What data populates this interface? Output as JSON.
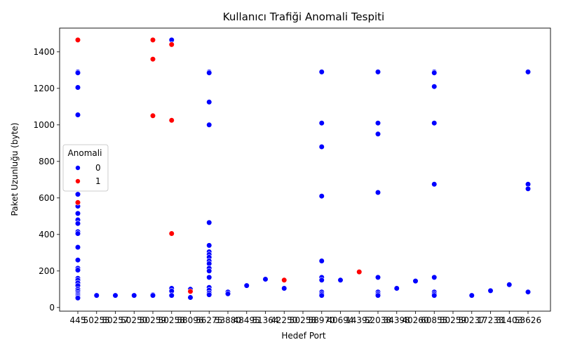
{
  "chart_data": {
    "type": "scatter",
    "title": "Kullanıcı Trafiği Anomali Tespiti",
    "xlabel": "Hedef Port",
    "ylabel": "Paket Uzunluğu (byte)",
    "ylim": [
      -20,
      1530
    ],
    "yticks": [
      0,
      200,
      400,
      600,
      800,
      1000,
      1200,
      1400
    ],
    "categories": [
      "445",
      "50255",
      "50257",
      "50250",
      "50259",
      "50258",
      "58096",
      "56275",
      "53880",
      "48495",
      "51364",
      "42250",
      "50258",
      "58970",
      "40694",
      "14392",
      "52038",
      "34398",
      "40260",
      "60855",
      "50259",
      "50237",
      "17233",
      "31403",
      "53626"
    ],
    "legend": {
      "title": "Anomali",
      "position": "center-left",
      "entries": [
        "0",
        "1"
      ]
    },
    "colors": {
      "0": "#0000ff",
      "1": "#ff0000"
    },
    "series": [
      {
        "name": "0",
        "points": [
          [
            "445",
            1290
          ],
          [
            "445",
            1285
          ],
          [
            "445",
            1205
          ],
          [
            "445",
            1055
          ],
          [
            "445",
            620
          ],
          [
            "445",
            555
          ],
          [
            "445",
            515
          ],
          [
            "445",
            480
          ],
          [
            "445",
            460
          ],
          [
            "445",
            415
          ],
          [
            "445",
            405
          ],
          [
            "445",
            330
          ],
          [
            "445",
            260
          ],
          [
            "445",
            215
          ],
          [
            "445",
            205
          ],
          [
            "445",
            160
          ],
          [
            "445",
            150
          ],
          [
            "445",
            135
          ],
          [
            "445",
            120
          ],
          [
            "445",
            100
          ],
          [
            "445",
            90
          ],
          [
            "445",
            80
          ],
          [
            "445",
            72
          ],
          [
            "445",
            65
          ],
          [
            "445",
            58
          ],
          [
            "445",
            52
          ],
          [
            "50255",
            66
          ],
          [
            "50257",
            66
          ],
          [
            "50250",
            66
          ],
          [
            "50259",
            66
          ],
          [
            "50258",
            66
          ],
          [
            "58096",
            100
          ],
          [
            "58096",
            55
          ],
          [
            "56275",
            1290
          ],
          [
            "56275",
            1285
          ],
          [
            "56275",
            1125
          ],
          [
            "56275",
            1000
          ],
          [
            "56275",
            465
          ],
          [
            "56275",
            340
          ],
          [
            "56275",
            305
          ],
          [
            "56275",
            290
          ],
          [
            "56275",
            275
          ],
          [
            "56275",
            255
          ],
          [
            "56275",
            240
          ],
          [
            "56275",
            215
          ],
          [
            "56275",
            200
          ],
          [
            "56275",
            165
          ],
          [
            "56275",
            110
          ],
          [
            "56275",
            95
          ],
          [
            "56275",
            80
          ],
          [
            "56275",
            70
          ],
          [
            "53880",
            85
          ],
          [
            "53880",
            75
          ],
          [
            "48495",
            120
          ],
          [
            "51364",
            155
          ],
          [
            "42250",
            105
          ],
          [
            "50258",
            1465
          ],
          [
            "50258",
            105
          ],
          [
            "50258",
            90
          ],
          [
            "50258",
            66
          ],
          [
            "58970",
            1290
          ],
          [
            "58970",
            1010
          ],
          [
            "58970",
            880
          ],
          [
            "58970",
            610
          ],
          [
            "58970",
            255
          ],
          [
            "58970",
            165
          ],
          [
            "58970",
            150
          ],
          [
            "58970",
            85
          ],
          [
            "58970",
            75
          ],
          [
            "58970",
            66
          ],
          [
            "40694",
            150
          ],
          [
            "52038",
            1290
          ],
          [
            "52038",
            1010
          ],
          [
            "52038",
            950
          ],
          [
            "52038",
            630
          ],
          [
            "52038",
            165
          ],
          [
            "52038",
            85
          ],
          [
            "52038",
            75
          ],
          [
            "52038",
            66
          ],
          [
            "34398",
            105
          ],
          [
            "40260",
            145
          ],
          [
            "60855",
            1290
          ],
          [
            "60855",
            1285
          ],
          [
            "60855",
            1210
          ],
          [
            "60855",
            1010
          ],
          [
            "60855",
            675
          ],
          [
            "60855",
            165
          ],
          [
            "60855",
            85
          ],
          [
            "60855",
            75
          ],
          [
            "60855",
            66
          ],
          [
            "50259",
            70
          ],
          [
            "50259",
            66
          ],
          [
            "50237",
            66
          ],
          [
            "17233",
            92
          ],
          [
            "31403",
            125
          ],
          [
            "53626",
            1290
          ],
          [
            "53626",
            675
          ],
          [
            "53626",
            650
          ],
          [
            "53626",
            85
          ]
        ]
      },
      {
        "name": "1",
        "points": [
          [
            "445",
            1465
          ],
          [
            "445",
            575
          ],
          [
            "58096",
            88
          ],
          [
            "42250",
            150
          ],
          [
            "50258",
            1440
          ],
          [
            "50258",
            1025
          ],
          [
            "50258",
            405
          ],
          [
            "14392",
            195
          ],
          [
            "50259",
            1465
          ],
          [
            "50259",
            1360
          ],
          [
            "50259",
            1050
          ]
        ]
      }
    ]
  }
}
